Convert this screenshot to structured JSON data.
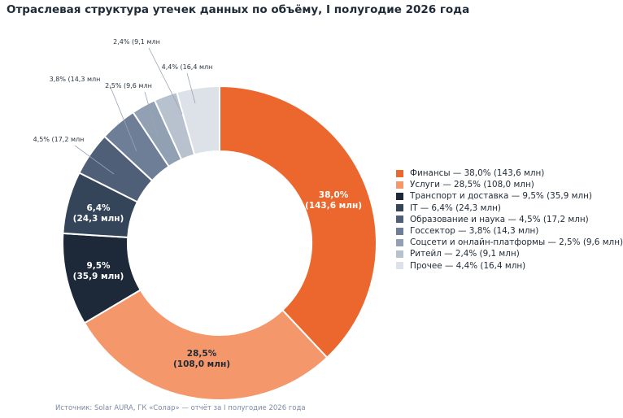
{
  "title": "Отраслевая структура утечек данных по объёму, I полугодие 2026 года",
  "source": "Источник: Solar AURA, ГК «Солар» — отчёт за I полугодие 2026 года",
  "chart_data": {
    "type": "pie",
    "variant": "donut",
    "title": "Отраслевая структура утечек данных по объёму, I полугодие 2026 года",
    "unit": "млн",
    "legend_position": "right",
    "series": [
      {
        "name": "Финансы",
        "percent": 38.0,
        "value": 143.6,
        "color": "#ec672e",
        "legend": "Финансы — 38,0% (143,6 млн)",
        "label_pct": "38,0%",
        "label_val": "(143,6 млн)"
      },
      {
        "name": "Услуги",
        "percent": 28.5,
        "value": 108.0,
        "color": "#f4976b",
        "legend": "Услуги — 28,5% (108,0 млн)",
        "label_pct": "28,5%",
        "label_val": "(108,0 млн)"
      },
      {
        "name": "Транспорт и доставка",
        "percent": 9.5,
        "value": 35.9,
        "color": "#1d2939",
        "legend": "Транспорт и доставка — 9,5% (35,9 млн)",
        "label_pct": "9,5%",
        "label_val": "(35,9 млн)"
      },
      {
        "name": "IT",
        "percent": 6.4,
        "value": 24.3,
        "color": "#344459",
        "legend": "IT — 6,4% (24,3 млн)",
        "label_pct": "6,4%",
        "label_val": "(24,3 млн)"
      },
      {
        "name": "Образование и наука",
        "percent": 4.5,
        "value": 17.2,
        "color": "#505f78",
        "legend": "Образование и наука — 4,5% (17,2 млн)",
        "label_pct": "4,5% (17,2 млн",
        "label_val": ""
      },
      {
        "name": "Госсектор",
        "percent": 3.8,
        "value": 14.3,
        "color": "#6e7e97",
        "legend": "Госсектор — 3,8% (14,3 млн)",
        "label_pct": "3,8% (14,3 млн",
        "label_val": ""
      },
      {
        "name": "Соцсети и онлайн-платформы",
        "percent": 2.5,
        "value": 9.6,
        "color": "#92a0b3",
        "legend": "Соцсети и онлайн-платформы — 2,5% (9,6 млн)",
        "label_pct": "2,5% (9,6 млн",
        "label_val": ""
      },
      {
        "name": "Ритейл",
        "percent": 2.4,
        "value": 9.1,
        "color": "#b8c2cf",
        "legend": "Ритейл — 2,4% (9,1 млн)",
        "label_pct": "2,4% (9,1 млн",
        "label_val": ""
      },
      {
        "name": "Прочее",
        "percent": 4.4,
        "value": 16.4,
        "color": "#dde2e8",
        "legend": "Прочее — 4,4% (16,4 млн)",
        "label_pct": "4,4% (16,4 млн",
        "label_val": ""
      }
    ]
  }
}
